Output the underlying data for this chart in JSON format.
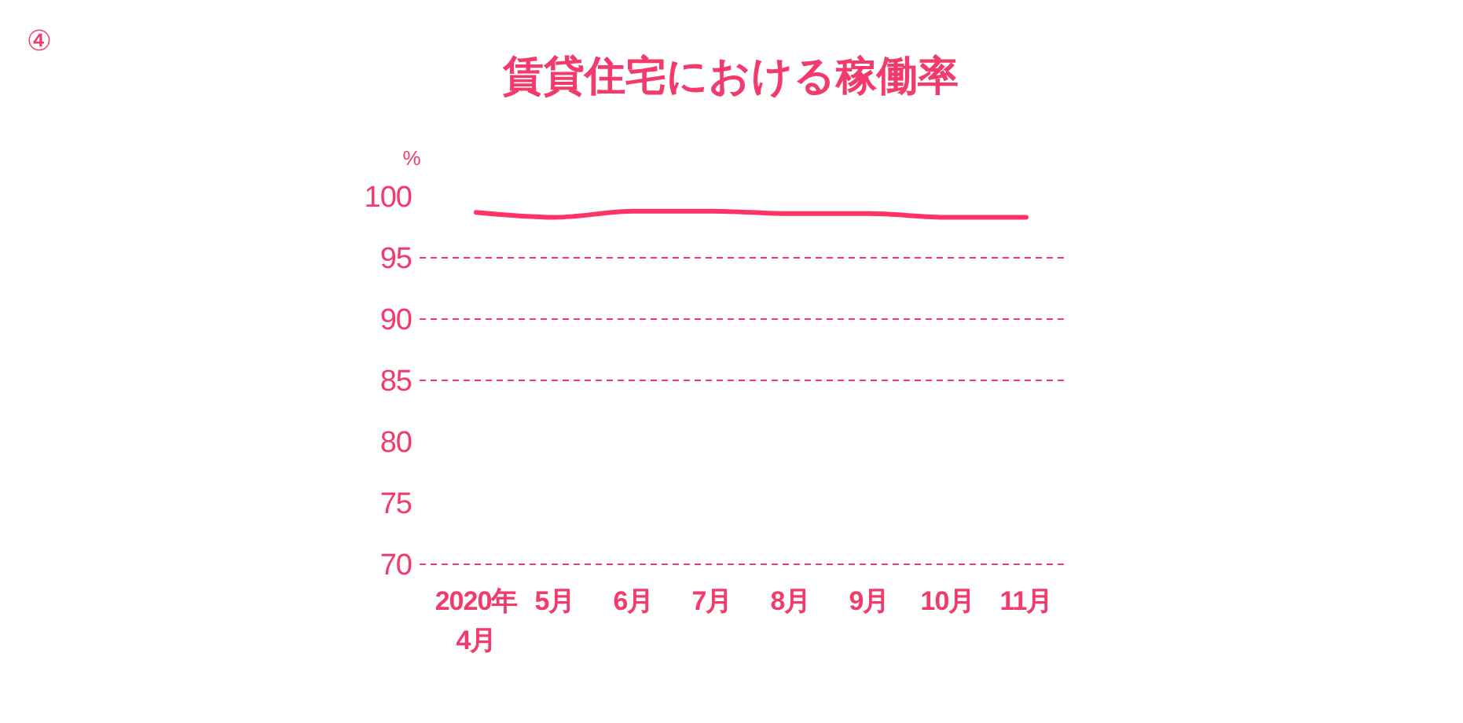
{
  "chart_data": {
    "type": "line",
    "title": "賃貸住宅における稼働率",
    "ylabel": "%",
    "annotations": [
      "④"
    ],
    "categories": [
      "2020年\n4月",
      "5月",
      "6月",
      "7月",
      "8月",
      "9月",
      "10月",
      "11月"
    ],
    "series": [
      {
        "color": "#ff3366",
        "values": [
          98.7,
          98.3,
          98.8,
          98.8,
          98.6,
          98.6,
          98.3,
          98.3
        ]
      }
    ],
    "ylim": [
      70,
      100
    ],
    "yticks": [
      70,
      75,
      80,
      85,
      90,
      95,
      100
    ],
    "ref_lines": [
      {
        "axis": "y",
        "value": 95,
        "color": "#ff3366",
        "line_style": "dashed"
      },
      {
        "axis": "y",
        "value": 90,
        "color": "#ff3366",
        "line_style": "dashed"
      },
      {
        "axis": "y",
        "value": 85,
        "color": "#ff3366",
        "line_style": "dashed"
      }
    ]
  }
}
